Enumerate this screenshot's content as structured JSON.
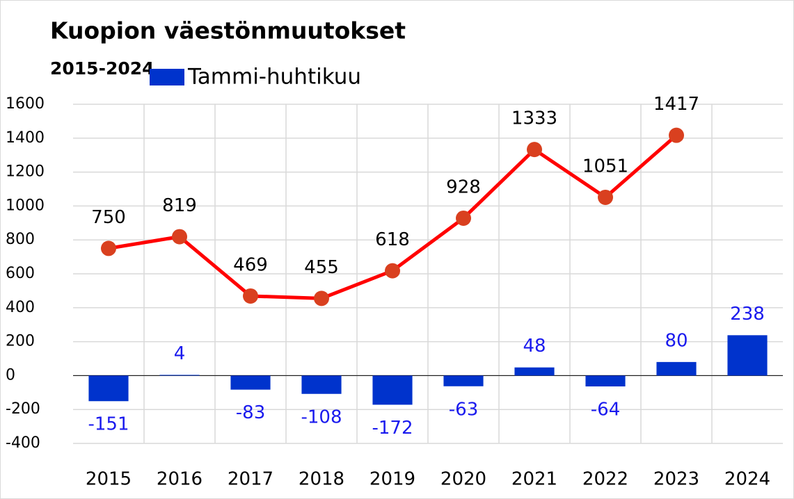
{
  "chart_data": {
    "type": "bar",
    "title": "Kuopion väestönmuutokset",
    "subtitle": "2015-2024",
    "categories": [
      "2015",
      "2016",
      "2017",
      "2018",
      "2019",
      "2020",
      "2021",
      "2022",
      "2023",
      "2024"
    ],
    "series": [
      {
        "name": "Tammi-huhtikuu",
        "type": "bar",
        "color": "#0033cc",
        "label_color": "#1a1aee",
        "values": [
          -151,
          4,
          -83,
          -108,
          -172,
          -63,
          48,
          -64,
          80,
          238
        ]
      },
      {
        "type": "line",
        "color": "#ff0000",
        "marker_color": "#d9401f",
        "label_color": "#000000",
        "values": [
          750,
          819,
          469,
          455,
          618,
          928,
          1333,
          1051,
          1417,
          null
        ]
      }
    ],
    "ylim": [
      -400,
      1600
    ],
    "yticks": [
      -400,
      -200,
      0,
      200,
      400,
      600,
      800,
      1000,
      1200,
      1400,
      1600
    ],
    "grid": true
  }
}
